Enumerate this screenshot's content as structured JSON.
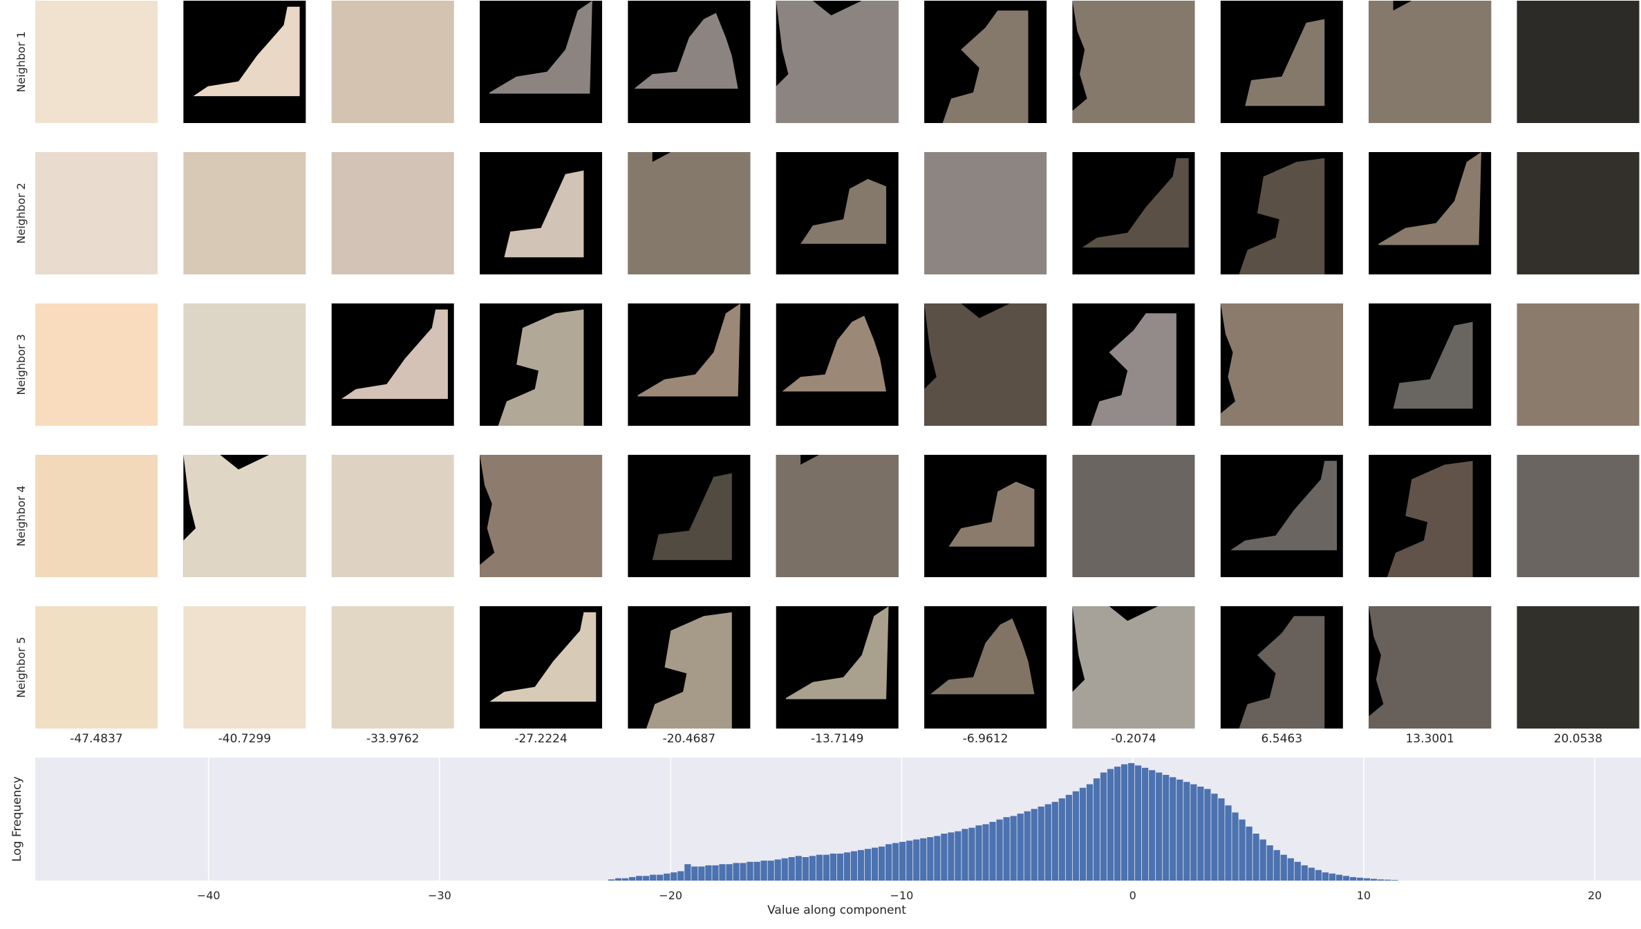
{
  "row_labels": [
    "Neighbor 1",
    "Neighbor 2",
    "Neighbor 3",
    "Neighbor 4",
    "Neighbor 5"
  ],
  "column_labels": [
    "-47.4837",
    "-40.7299",
    "-33.9762",
    "-27.2224",
    "-20.4687",
    "-13.7149",
    "-6.9612",
    "-0.2074",
    "6.5463",
    "13.3001",
    "20.0538"
  ],
  "tile_colors": [
    [
      "#f0e2cf",
      "#ead8c7",
      "#d3c3b0",
      "#8b8480",
      "#8b8480",
      "#8b8480",
      "#85796c",
      "#85796c",
      "#85796c",
      "#85796c",
      "#2d2b27"
    ],
    [
      "#eadbcf",
      "#d8c8b6",
      "#d3c3b6",
      "#d1c3b6",
      "#85796c",
      "#85796c",
      "#8d8582",
      "#5b5046",
      "#5b5046",
      "#8a7b6d",
      "#33302b"
    ],
    [
      "#f8dcbd",
      "#ddd5c6",
      "#d3c2b5",
      "#b1a898",
      "#9b8877",
      "#9b8877",
      "#5b5046",
      "#938b89",
      "#8b7b6d",
      "#696561",
      "#8b7b6d"
    ],
    [
      "#f1d9ba",
      "#dfd6c6",
      "#ded3c3",
      "#8d7b6d",
      "#524b41",
      "#7a7066",
      "#8a7b6d",
      "#6a6561",
      "#6a6561",
      "#615349",
      "#6a6561"
    ],
    [
      "#f1dfc4",
      "#efe1cd",
      "#e2d7c4",
      "#d7cbb8",
      "#a59b88",
      "#a9a08e",
      "#827465",
      "#a6a29a",
      "#67605b",
      "#67605b",
      "#32302b"
    ]
  ],
  "chart_data": {
    "type": "bar",
    "xlabel": "Value along component",
    "ylabel": "Log Frequency",
    "xlim": [
      -47.5,
      22
    ],
    "xticks": [
      -40,
      -30,
      -20,
      -10,
      0,
      10,
      20
    ],
    "xtick_labels": [
      "−40",
      "−30",
      "−20",
      "−10",
      "0",
      "10",
      "20"
    ],
    "y_scale": "log",
    "y_relative_range": [
      0,
      1
    ],
    "bin_width": 0.3,
    "bins_x": [
      -22.7,
      -22.4,
      -22.1,
      -21.8,
      -21.5,
      -21.2,
      -20.9,
      -20.6,
      -20.3,
      -20.0,
      -19.7,
      -19.4,
      -19.1,
      -18.8,
      -18.5,
      -18.2,
      -17.9,
      -17.6,
      -17.3,
      -17.0,
      -16.7,
      -16.4,
      -16.1,
      -15.8,
      -15.5,
      -15.2,
      -14.9,
      -14.6,
      -14.3,
      -14.0,
      -13.7,
      -13.4,
      -13.1,
      -12.8,
      -12.5,
      -12.2,
      -11.9,
      -11.6,
      -11.3,
      -11.0,
      -10.7,
      -10.4,
      -10.1,
      -9.8,
      -9.5,
      -9.2,
      -8.9,
      -8.6,
      -8.3,
      -8.0,
      -7.7,
      -7.4,
      -7.1,
      -6.8,
      -6.5,
      -6.2,
      -5.9,
      -5.6,
      -5.3,
      -5.0,
      -4.7,
      -4.4,
      -4.1,
      -3.8,
      -3.5,
      -3.2,
      -2.9,
      -2.6,
      -2.3,
      -2.0,
      -1.7,
      -1.4,
      -1.1,
      -0.8,
      -0.5,
      -0.2,
      0.1,
      0.4,
      0.7,
      1.0,
      1.3,
      1.6,
      1.9,
      2.2,
      2.5,
      2.8,
      3.1,
      3.4,
      3.7,
      4.0,
      4.3,
      4.6,
      4.9,
      5.2,
      5.5,
      5.8,
      6.1,
      6.4,
      6.7,
      7.0,
      7.3,
      7.6,
      7.9,
      8.2,
      8.5,
      8.8,
      9.1,
      9.4,
      9.7,
      10.0,
      10.3,
      10.6,
      10.9,
      11.2
    ],
    "bins_height": [
      0.01,
      0.02,
      0.02,
      0.03,
      0.04,
      0.04,
      0.05,
      0.05,
      0.06,
      0.07,
      0.08,
      0.14,
      0.12,
      0.12,
      0.13,
      0.13,
      0.14,
      0.14,
      0.15,
      0.15,
      0.16,
      0.16,
      0.17,
      0.17,
      0.18,
      0.19,
      0.2,
      0.21,
      0.2,
      0.21,
      0.22,
      0.22,
      0.23,
      0.23,
      0.24,
      0.25,
      0.26,
      0.27,
      0.28,
      0.29,
      0.31,
      0.32,
      0.33,
      0.34,
      0.35,
      0.36,
      0.37,
      0.38,
      0.4,
      0.41,
      0.42,
      0.44,
      0.45,
      0.47,
      0.48,
      0.5,
      0.52,
      0.54,
      0.55,
      0.57,
      0.59,
      0.61,
      0.63,
      0.65,
      0.67,
      0.7,
      0.73,
      0.76,
      0.79,
      0.82,
      0.87,
      0.92,
      0.95,
      0.97,
      0.99,
      1.0,
      0.98,
      0.96,
      0.94,
      0.92,
      0.9,
      0.88,
      0.86,
      0.84,
      0.82,
      0.8,
      0.78,
      0.74,
      0.7,
      0.64,
      0.58,
      0.52,
      0.46,
      0.4,
      0.35,
      0.3,
      0.26,
      0.22,
      0.19,
      0.16,
      0.13,
      0.11,
      0.09,
      0.07,
      0.06,
      0.05,
      0.04,
      0.03,
      0.025,
      0.02,
      0.015,
      0.01,
      0.008,
      0.005
    ]
  },
  "colors": {
    "plot_bg": "#eaeaf2",
    "grid": "#ffffff",
    "bar": "#4c72b0",
    "mask": "#000000"
  }
}
